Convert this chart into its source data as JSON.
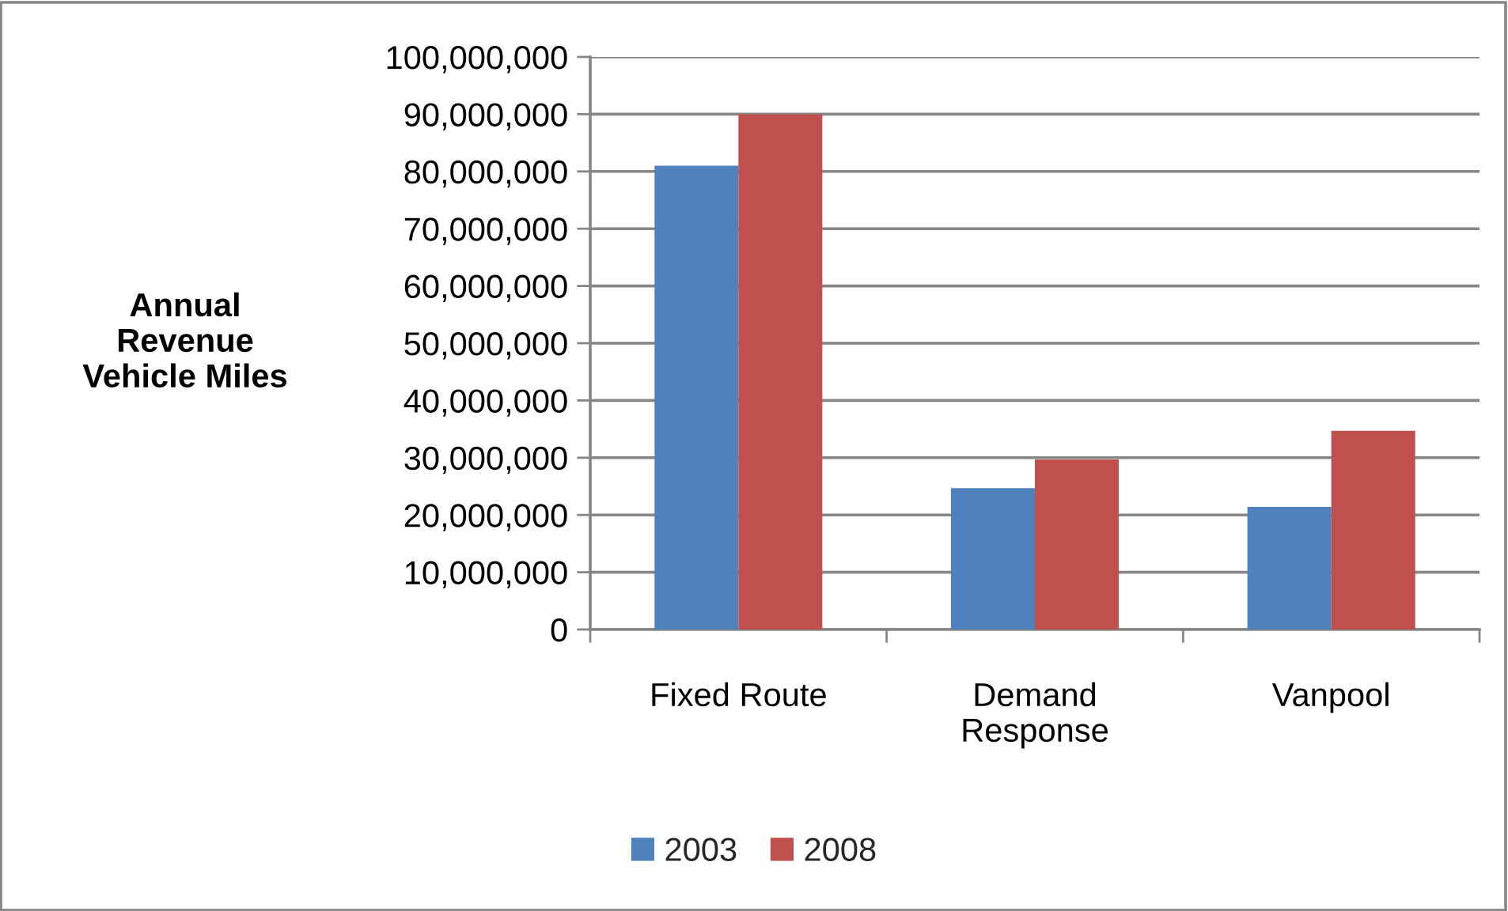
{
  "chart_data": {
    "type": "bar",
    "ylabel": "Annual Revenue Vehicle Miles",
    "categories": [
      "Fixed Route",
      "Demand Response",
      "Vanpool"
    ],
    "series": [
      {
        "name": "2003",
        "color": "#4f81bd",
        "values": [
          81000000,
          24700000,
          21400000
        ]
      },
      {
        "name": "2008",
        "color": "#c0504d",
        "values": [
          90000000,
          29700000,
          34700000
        ]
      }
    ],
    "ylim": [
      0,
      100000000
    ],
    "yticks": [
      0,
      {
        "value": 10000000,
        "label": "10,000,000"
      },
      {
        "value": 20000000,
        "label": "20,000,000"
      },
      {
        "value": 30000000,
        "label": "30,000,000"
      },
      {
        "value": 40000000,
        "label": "40,000,000"
      },
      {
        "value": 50000000,
        "label": "50,000,000"
      },
      {
        "value": 60000000,
        "label": "60,000,000"
      },
      {
        "value": 70000000,
        "label": "70,000,000"
      },
      {
        "value": 80000000,
        "label": "80,000,000"
      },
      {
        "value": 90000000,
        "label": "90,000,000"
      },
      {
        "value": 100000000,
        "label": "100,000,000"
      }
    ],
    "grid": "y",
    "legend": "bottom"
  }
}
